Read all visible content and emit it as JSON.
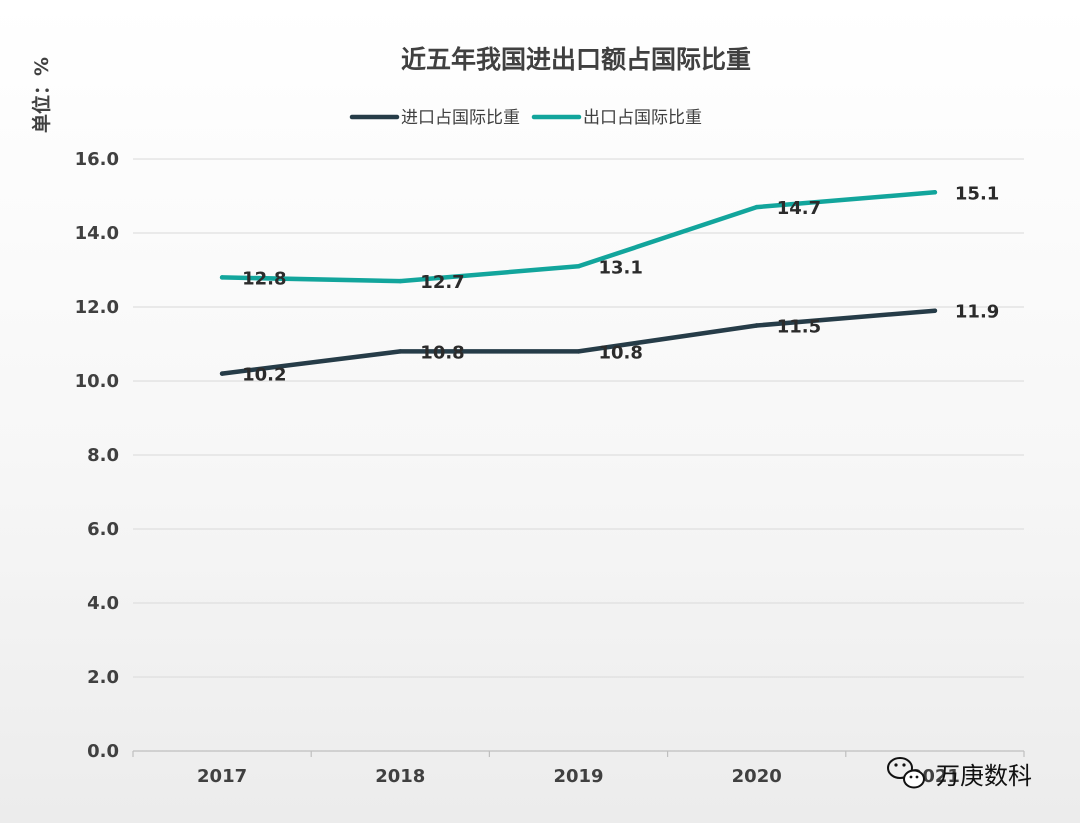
{
  "chart_data": {
    "type": "line",
    "title": "近五年我国进出口额占国际比重",
    "ylabel": "单位：%",
    "categories": [
      "2017",
      "2018",
      "2019",
      "2020",
      "2021"
    ],
    "ylim": [
      0,
      16
    ],
    "yticks": [
      "0.0",
      "2.0",
      "4.0",
      "6.0",
      "8.0",
      "10.0",
      "12.0",
      "14.0",
      "16.0"
    ],
    "grid": true,
    "legend_position": "top",
    "series": [
      {
        "name": "进口占国际比重",
        "color": "#263c48",
        "values": [
          10.2,
          10.8,
          10.8,
          11.5,
          11.9
        ],
        "labels": [
          "10.2",
          "10.8",
          "10.8",
          "11.5",
          "11.9"
        ]
      },
      {
        "name": "出口占国际比重",
        "color": "#12a59c",
        "values": [
          12.8,
          12.7,
          13.1,
          14.7,
          15.1
        ],
        "labels": [
          "12.8",
          "12.7",
          "13.1",
          "14.7",
          "15.1"
        ]
      }
    ]
  },
  "watermark": {
    "text": "万庚数科",
    "icon": "wechat-icon"
  }
}
